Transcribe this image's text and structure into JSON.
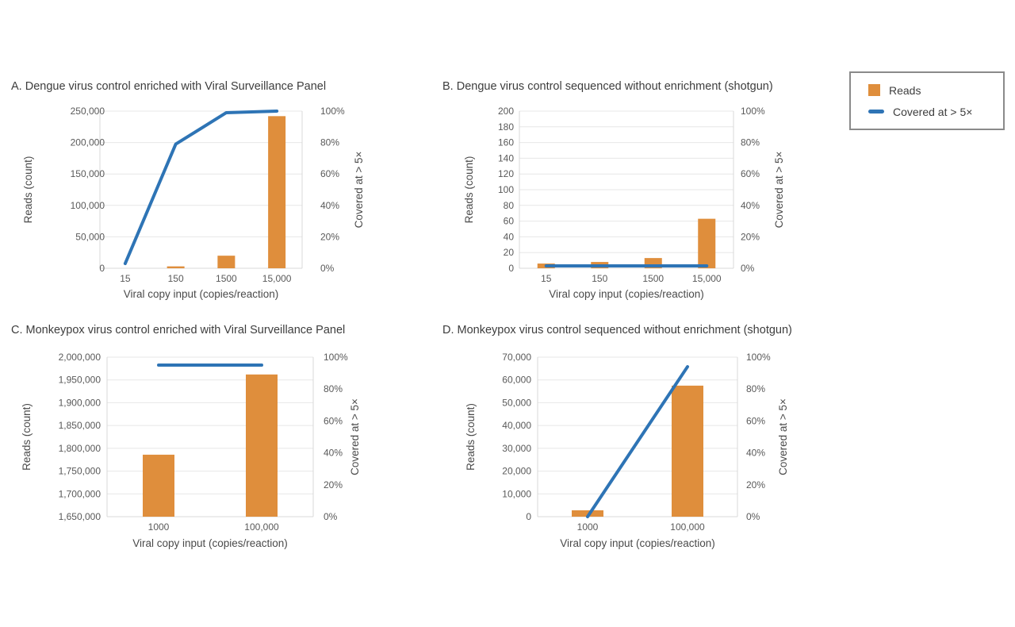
{
  "colors": {
    "bar": "#DF8E3C",
    "line": "#2E74B5",
    "grid": "#E7E7E7",
    "axis_line": "#D8D8D8",
    "tick_text": "#595959",
    "title_text": "#3D3D3D",
    "legend_border": "#8A8A8A"
  },
  "legend": {
    "items": [
      {
        "label": "Reads",
        "swatch": "bar",
        "color": "#DF8E3C"
      },
      {
        "label": "Covered at > 5×",
        "swatch": "line",
        "color": "#2E74B5"
      }
    ]
  },
  "chart_data": [
    {
      "id": "A",
      "type": "bar+line",
      "title": "A. Dengue virus control enriched with Viral Surveillance Panel",
      "categories": [
        "15",
        "150",
        "1500",
        "15,000"
      ],
      "series": [
        {
          "name": "Reads",
          "type": "bar",
          "axis": "left",
          "values": [
            0,
            3000,
            20000,
            242000
          ]
        },
        {
          "name": "Covered at > 5×",
          "type": "line",
          "axis": "right",
          "values": [
            3,
            79,
            99,
            100
          ]
        }
      ],
      "xlabel": "Viral copy input (copies/reaction)",
      "left_axis": {
        "label": "Reads (count)",
        "min": 0,
        "max": 250000,
        "step": 50000
      },
      "right_axis": {
        "label": "Covered at > 5×",
        "min": 0,
        "max": 100,
        "step": 20,
        "suffix": "%"
      },
      "grid": true,
      "legend_position": "outside-top-right"
    },
    {
      "id": "B",
      "type": "bar+line",
      "title": "B. Dengue virus control sequenced without enrichment (shotgun)",
      "categories": [
        "15",
        "150",
        "1500",
        "15,000"
      ],
      "series": [
        {
          "name": "Reads",
          "type": "bar",
          "axis": "left",
          "values": [
            6,
            8,
            13,
            63
          ]
        },
        {
          "name": "Covered at > 5×",
          "type": "line",
          "axis": "right",
          "values": [
            1.5,
            1.5,
            1.5,
            1.5
          ]
        }
      ],
      "xlabel": "Viral copy input (copies/reaction)",
      "left_axis": {
        "label": "Reads (count)",
        "min": 0,
        "max": 200,
        "step": 20
      },
      "right_axis": {
        "label": "Covered at > 5×",
        "min": 0,
        "max": 100,
        "step": 20,
        "suffix": "%"
      },
      "grid": true,
      "legend_position": "outside-top-right"
    },
    {
      "id": "C",
      "type": "bar+line",
      "title": "C. Monkeypox virus control enriched with Viral Surveillance Panel",
      "categories": [
        "1000",
        "100,000"
      ],
      "series": [
        {
          "name": "Reads",
          "type": "bar",
          "axis": "left",
          "values": [
            1786000,
            1962000
          ]
        },
        {
          "name": "Covered at > 5×",
          "type": "line",
          "axis": "right",
          "values": [
            95,
            95
          ]
        }
      ],
      "xlabel": "Viral copy input (copies/reaction)",
      "left_axis": {
        "label": "Reads (count)",
        "min": 1650000,
        "max": 2000000,
        "step": 50000
      },
      "right_axis": {
        "label": "Covered at > 5×",
        "min": 0,
        "max": 100,
        "step": 20,
        "suffix": "%"
      },
      "grid": true,
      "legend_position": "outside-top-right"
    },
    {
      "id": "D",
      "type": "bar+line",
      "title": "D. Monkeypox virus control sequenced without enrichment (shotgun)",
      "categories": [
        "1000",
        "100,000"
      ],
      "series": [
        {
          "name": "Reads",
          "type": "bar",
          "axis": "left",
          "values": [
            2800,
            57500
          ]
        },
        {
          "name": "Covered at > 5×",
          "type": "line",
          "axis": "right",
          "values": [
            0,
            94
          ]
        }
      ],
      "xlabel": "Viral copy input (copies/reaction)",
      "left_axis": {
        "label": "Reads (count)",
        "min": 0,
        "max": 70000,
        "step": 10000
      },
      "right_axis": {
        "label": "Covered at > 5×",
        "min": 0,
        "max": 100,
        "step": 20,
        "suffix": "%"
      },
      "grid": true,
      "legend_position": "outside-top-right"
    }
  ]
}
